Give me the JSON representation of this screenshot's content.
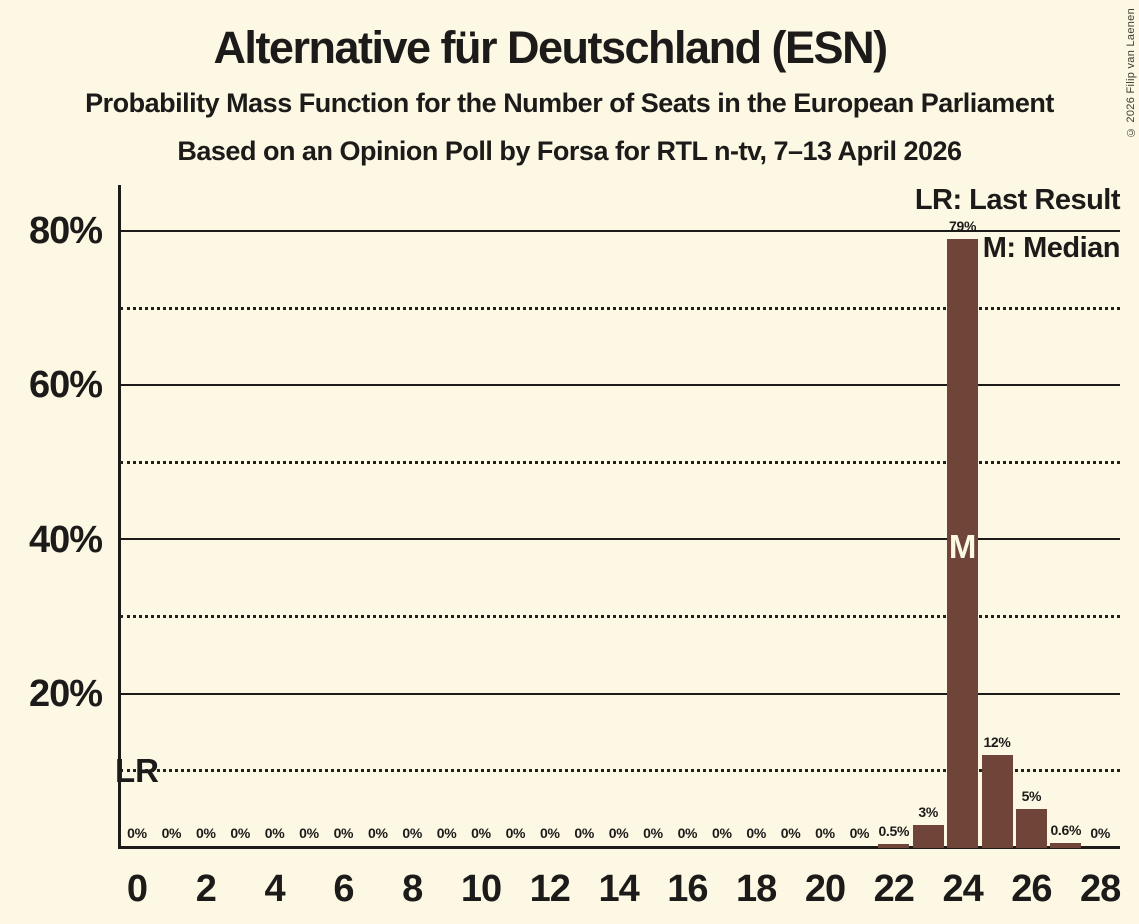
{
  "header": {
    "title": "Alternative für Deutschland (ESN)",
    "subtitle": "Probability Mass Function for the Number of Seats in the European Parliament",
    "source_line": "Based on an Opinion Poll by Forsa for RTL n-tv, 7–13 April 2026",
    "copyright": "© 2026 Filip van Laenen"
  },
  "legend": {
    "lr": "LR: Last Result",
    "median": "M: Median"
  },
  "markers": {
    "lr_label": "LR",
    "median_label": "M",
    "lr_seat": 0,
    "lr_percent": 10,
    "median_seat": 24,
    "median_percent": 40
  },
  "colors": {
    "background": "#FDF8E3",
    "bar": "#6E4538",
    "text": "#1C1B1A",
    "median_text": "#FDF8E3"
  },
  "chart_data": {
    "type": "bar",
    "title": "Alternative für Deutschland (ESN)",
    "subtitle": "Probability Mass Function for the Number of Seats in the European Parliament",
    "x": [
      0,
      1,
      2,
      3,
      4,
      5,
      6,
      7,
      8,
      9,
      10,
      11,
      12,
      13,
      14,
      15,
      16,
      17,
      18,
      19,
      20,
      21,
      22,
      23,
      24,
      25,
      26,
      27,
      28
    ],
    "values": [
      0,
      0,
      0,
      0,
      0,
      0,
      0,
      0,
      0,
      0,
      0,
      0,
      0,
      0,
      0,
      0,
      0,
      0,
      0,
      0,
      0,
      0,
      0.5,
      3,
      79,
      12,
      5,
      0.6,
      0
    ],
    "bar_labels": [
      "0%",
      "0%",
      "0%",
      "0%",
      "0%",
      "0%",
      "0%",
      "0%",
      "0%",
      "0%",
      "0%",
      "0%",
      "0%",
      "0%",
      "0%",
      "0%",
      "0%",
      "0%",
      "0%",
      "0%",
      "0%",
      "0%",
      "0.5%",
      "3%",
      "79%",
      "12%",
      "5%",
      "0.6%",
      "0%"
    ],
    "x_tick_labels": [
      "0",
      "2",
      "4",
      "6",
      "8",
      "10",
      "12",
      "14",
      "16",
      "18",
      "20",
      "22",
      "24",
      "26",
      "28"
    ],
    "y_tick_labels": [
      "20%",
      "40%",
      "60%",
      "80%"
    ],
    "y_solid_gridlines": [
      20,
      40,
      60,
      80
    ],
    "y_dotted_gridlines": [
      10,
      30,
      50,
      70
    ],
    "ylim": [
      0,
      86
    ],
    "grid": true,
    "legend_position": "top-right",
    "median_seat": 24,
    "last_result_marker_percent": 10
  }
}
